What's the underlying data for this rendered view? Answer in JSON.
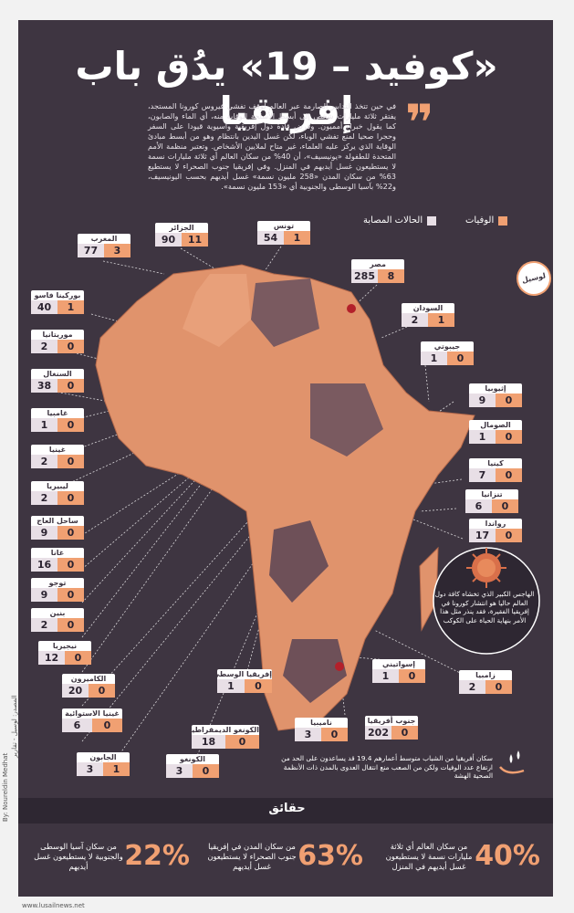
{
  "title": "«كوفيد – 19» يدُق باب إفريقيا",
  "intro": "في حين تتخذ التدابير الصارمة عبر العالم لوقف تفشي فيروس كورونا المستجد، يفتقر ثلاثة مليارات شخص إلى أبسط الأسلحة للوقاية منه، أي الماء والصابون، كما يقول خبراء أمميون. وفرض قادة دول إفريقية وآسيوية قيودا على السفر وحجرا صحيا لمنع تفشي الوباء، لكن غسل اليدين بانتظام وهو من أبسط مبادئ الوقاية الذي يركز عليه العلماء، غير متاح لملايين الأشخاص. وتعتبر منظمة الأمم المتحدة للطفولة «يونيسيف»، أن 40% من سكان العالم أي ثلاثة مليارات نسمة لا يستطيعون غسل أيديهم في المنزل. وفي إفريقيا جنوب الصحراء لا يستطيع 63% من سكان المدن «258 مليون نسمة» غسل أيديهم بحسب اليونيسيف، و22% بآسيا الوسطى والجنوبية أي «153 مليون نسمة».",
  "legend": {
    "deaths": "الوفيات",
    "cases": "الحالات المصابة"
  },
  "colors": {
    "background": "#3e3541",
    "accent": "#f0a072",
    "map_land": "#e0936c",
    "map_dark": "#7a5a60"
  },
  "logo": "لوسيل",
  "countries": {
    "maghreb": {
      "name": "المغرب",
      "cases": "77",
      "deaths": "3"
    },
    "algeria": {
      "name": "الجزائر",
      "cases": "90",
      "deaths": "11"
    },
    "tunisia": {
      "name": "تونس",
      "cases": "54",
      "deaths": "1"
    },
    "egypt": {
      "name": "مصر",
      "cases": "285",
      "deaths": "8"
    },
    "burkina": {
      "name": "بوركينا فاسو",
      "cases": "40",
      "deaths": "1"
    },
    "sudan": {
      "name": "السودان",
      "cases": "2",
      "deaths": "1"
    },
    "mauritania": {
      "name": "موريتانيا",
      "cases": "2",
      "deaths": "0"
    },
    "djibouti": {
      "name": "جيبوتي",
      "cases": "1",
      "deaths": "0"
    },
    "senegal": {
      "name": "السنغال",
      "cases": "38",
      "deaths": "0"
    },
    "ethiopia": {
      "name": "إثيوبيا",
      "cases": "9",
      "deaths": "0"
    },
    "gambia": {
      "name": "غامبيا",
      "cases": "1",
      "deaths": "0"
    },
    "somalia": {
      "name": "الصومال",
      "cases": "1",
      "deaths": "0"
    },
    "guinea": {
      "name": "غينيا",
      "cases": "2",
      "deaths": "0"
    },
    "kenya": {
      "name": "كينيا",
      "cases": "7",
      "deaths": "0"
    },
    "liberia": {
      "name": "ليبيريا",
      "cases": "2",
      "deaths": "0"
    },
    "tanzania": {
      "name": "تنزانيا",
      "cases": "6",
      "deaths": "0"
    },
    "ivory": {
      "name": "ساحل العاج",
      "cases": "9",
      "deaths": "0"
    },
    "rwanda": {
      "name": "رواندا",
      "cases": "17",
      "deaths": "0"
    },
    "ghana": {
      "name": "غانا",
      "cases": "16",
      "deaths": "0"
    },
    "togo": {
      "name": "توجو",
      "cases": "9",
      "deaths": "0"
    },
    "benin": {
      "name": "بنين",
      "cases": "2",
      "deaths": "0"
    },
    "nigeria": {
      "name": "نيجيريا",
      "cases": "12",
      "deaths": "0"
    },
    "cameroon": {
      "name": "الكاميرون",
      "cases": "20",
      "deaths": "0"
    },
    "eqguinea": {
      "name": "غينيا الاستوائية",
      "cases": "6",
      "deaths": "0"
    },
    "car": {
      "name": "إفريقيا الوسطى",
      "cases": "1",
      "deaths": "0"
    },
    "eswatini": {
      "name": "إسواتيني",
      "cases": "1",
      "deaths": "0"
    },
    "zambia": {
      "name": "زامبيا",
      "cases": "2",
      "deaths": "0"
    },
    "drc": {
      "name": "الكونغو الديمقراطية",
      "cases": "18",
      "deaths": "0"
    },
    "namibia": {
      "name": "ناميبيا",
      "cases": "3",
      "deaths": "0"
    },
    "southafrica": {
      "name": "جنوب أفريقيا",
      "cases": "202",
      "deaths": "0"
    },
    "gabon": {
      "name": "الجابون",
      "cases": "3",
      "deaths": "1"
    },
    "congo": {
      "name": "الكونغو",
      "cases": "3",
      "deaths": "0"
    }
  },
  "virus_text": "الهاجس الكبير الذي تخشاه كافة دول العالم حاليا هو انتشار كورونا في إفريقيا الفقيرة، فقد ينذر مثل هذا الأمر بنهاية الحياة على الكوكب",
  "youth_note": "سكان أفريقيا من الشباب متوسط أعمارهم 19.4 قد يساعدون على الحد من ارتفاع عدد الوفيات ولكن من الصعب منع انتقال العدوى بالمدن ذات الأنظمة الصحية الهشة",
  "facts": {
    "title": "حقائق",
    "items": [
      {
        "pct": "40%",
        "text": "من سكان العالم أي ثلاثة مليارات نسمة لا يستطيعون غسل أيديهم في المنزل"
      },
      {
        "pct": "63%",
        "text": "من سكان المدن في إفريقيا جنوب الصحراء لا يستطيعون غسل أيديهم"
      },
      {
        "pct": "22%",
        "text": "من سكان آسيا الوسطى والجنوبية لا يستطيعون غسل أيديهم"
      }
    ]
  },
  "footer": {
    "site": "www.lusailnews.net",
    "byline": "By: Noureldin Medhat",
    "source": "المصدر: لوسيل - تقارير"
  }
}
